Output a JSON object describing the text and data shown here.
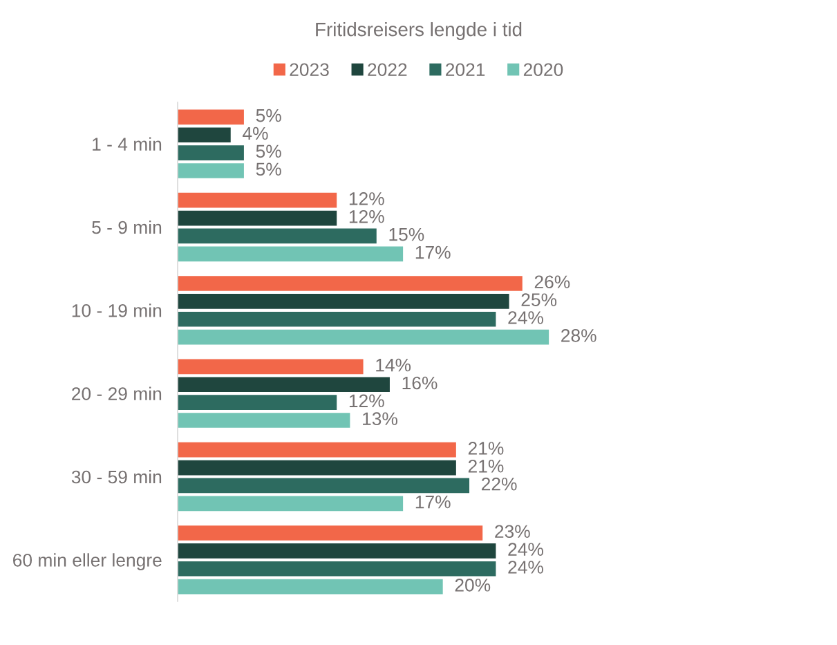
{
  "chart_data": {
    "type": "bar",
    "orientation": "horizontal",
    "title": "Fritidsreisers lengde i tid",
    "categories": [
      "1 - 4 min",
      "5 - 9 min",
      "10 - 19 min",
      "20 - 29 min",
      "30 - 59 min",
      "60 min eller lengre"
    ],
    "series": [
      {
        "name": "2023",
        "color": "#f26749",
        "values": [
          5,
          12,
          26,
          14,
          21,
          23
        ],
        "value_labels": [
          "5%",
          "12%",
          "26%",
          "14%",
          "21%",
          "23%"
        ]
      },
      {
        "name": "2022",
        "color": "#1f463e",
        "values": [
          4,
          12,
          25,
          16,
          21,
          24
        ],
        "value_labels": [
          "4%",
          "12%",
          "25%",
          "16%",
          "21%",
          "24%"
        ]
      },
      {
        "name": "2021",
        "color": "#2d6b60",
        "values": [
          5,
          15,
          24,
          12,
          22,
          24
        ],
        "value_labels": [
          "5%",
          "15%",
          "24%",
          "12%",
          "22%",
          "24%"
        ]
      },
      {
        "name": "2020",
        "color": "#71c4b4",
        "values": [
          5,
          17,
          28,
          13,
          17,
          20
        ],
        "value_labels": [
          "5%",
          "17%",
          "28%",
          "13%",
          "17%",
          "20%"
        ]
      }
    ],
    "tick_labels": "y",
    "legend": "top",
    "grid": false
  }
}
